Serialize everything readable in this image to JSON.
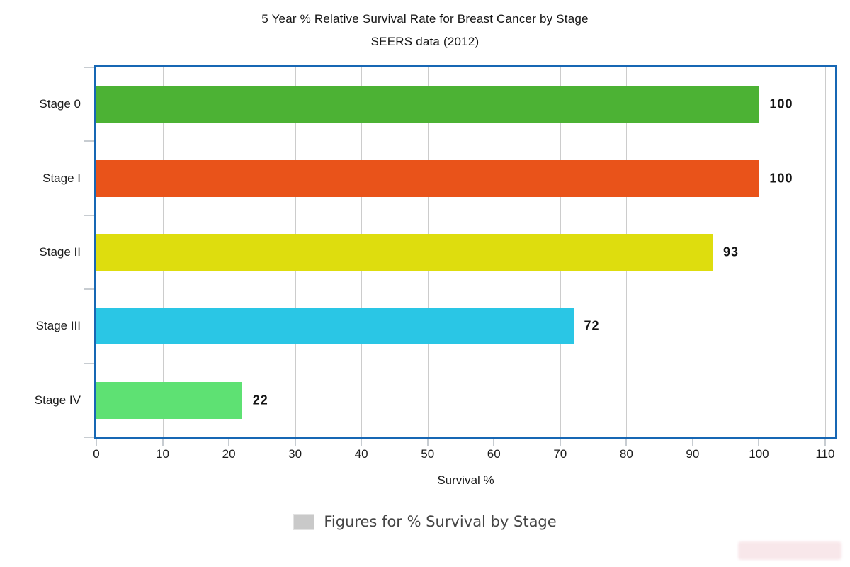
{
  "title": {
    "line1": "5 Year % Relative Survival Rate for Breast Cancer by Stage",
    "line2": "SEERS data (2012)"
  },
  "chart_data": {
    "type": "bar",
    "orientation": "horizontal",
    "title": "5 Year % Relative Survival Rate for Breast Cancer by Stage",
    "subtitle": "SEERS data (2012)",
    "categories": [
      "Stage 0",
      "Stage I",
      "Stage II",
      "Stage III",
      "Stage IV"
    ],
    "values": [
      100,
      100,
      93,
      72,
      22
    ],
    "value_labels": [
      "100",
      "100",
      "93",
      "72",
      "22"
    ],
    "bar_colors": [
      "#4cb234",
      "#e9531a",
      "#dedd0e",
      "#2ac6e5",
      "#5ee173"
    ],
    "xlabel": "Survival %",
    "ylabel": "",
    "xlim": [
      0,
      111.5
    ],
    "x_ticks": [
      0,
      10,
      20,
      30,
      40,
      50,
      60,
      70,
      80,
      90,
      100,
      110
    ],
    "grid": true,
    "legend": {
      "label": "Figures for % Survival by Stage",
      "swatch_color": "#c9c9c9",
      "position": "bottom"
    }
  },
  "colors": {
    "plot_border": "#1767b4",
    "gridline": "#cccccc",
    "tick": "#c7ccd1",
    "value_label": "#141414",
    "axis_text": "#1c1c1c",
    "legend_text": "#454545",
    "watermark": "#f7e2e6"
  }
}
